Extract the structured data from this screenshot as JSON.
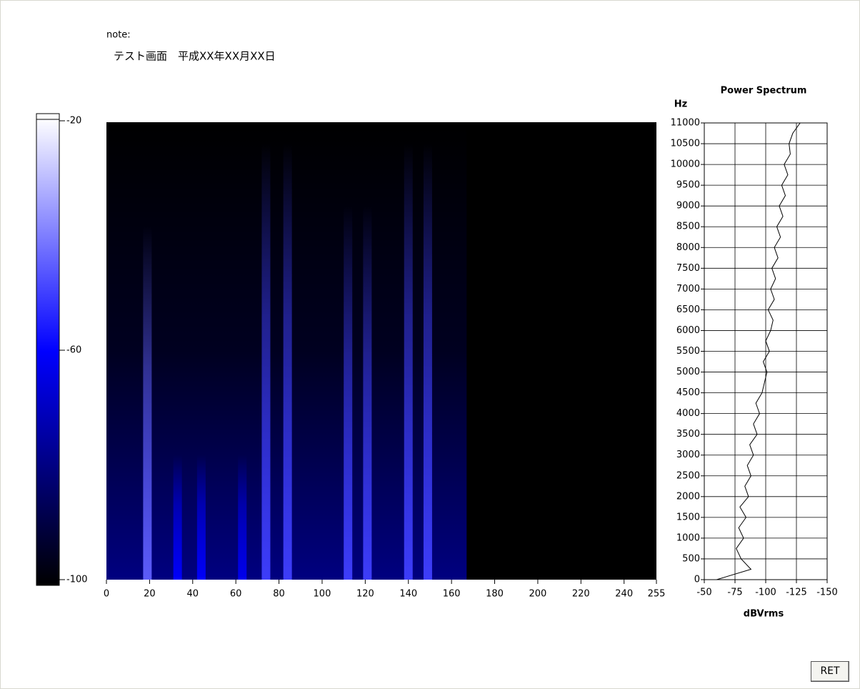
{
  "note_label": "note:",
  "note_text": "テスト画面　平成XX年XX月XX日",
  "button": "RET",
  "chart_data": [
    {
      "type": "colorbar",
      "ylim": [
        -100,
        -20
      ],
      "yticks": [
        -20,
        -60,
        -100
      ]
    },
    {
      "type": "spectrogram",
      "xlim": [
        0,
        255
      ],
      "xticks": [
        0,
        20,
        40,
        60,
        80,
        100,
        120,
        140,
        160,
        180,
        200,
        220,
        240,
        255
      ],
      "ylim": [
        0,
        11000
      ],
      "x_end": 167,
      "floor": -80,
      "x": [
        19,
        33,
        44,
        63,
        74,
        84,
        112,
        121,
        140,
        149
      ],
      "values": [
        -45,
        -60,
        -60,
        -62,
        -50,
        -50,
        -50,
        -50,
        -50,
        -50
      ],
      "tops": [
        8500,
        3000,
        3000,
        3000,
        10500,
        10500,
        9000,
        9000,
        10500,
        10500
      ]
    },
    {
      "type": "line",
      "title": "Power Spectrum",
      "ylabel": "Hz",
      "xlabel": "dBVrms",
      "color": "#000000",
      "grid": true,
      "xlim": [
        -50,
        -150
      ],
      "xticks": [
        -50,
        -75,
        -100,
        -125,
        -150
      ],
      "ylim": [
        0,
        11000
      ],
      "yticks": [
        0,
        500,
        1000,
        1500,
        2000,
        2500,
        3000,
        3500,
        4000,
        4500,
        5000,
        5500,
        6000,
        6500,
        7000,
        7500,
        8000,
        8500,
        9000,
        9500,
        10000,
        10500,
        11000
      ],
      "x": [
        0,
        250,
        500,
        750,
        1000,
        1250,
        1500,
        1750,
        2000,
        2250,
        2500,
        2750,
        3000,
        3250,
        3500,
        3750,
        4000,
        4250,
        4500,
        4750,
        5000,
        5250,
        5500,
        5750,
        6000,
        6250,
        6500,
        6750,
        7000,
        7250,
        7500,
        7750,
        8000,
        8250,
        8500,
        8750,
        9000,
        9250,
        9500,
        9750,
        10000,
        10250,
        10500,
        10750,
        11000
      ],
      "values": [
        -60,
        -88,
        -80,
        -76,
        -82,
        -78,
        -84,
        -79,
        -86,
        -83,
        -88,
        -85,
        -90,
        -87,
        -93,
        -90,
        -95,
        -92,
        -97,
        -99,
        -101,
        -98,
        -103,
        -100,
        -104,
        -106,
        -102,
        -107,
        -104,
        -108,
        -105,
        -110,
        -107,
        -112,
        -109,
        -114,
        -111,
        -116,
        -113,
        -118,
        -115,
        -120,
        -119,
        -122,
        -128
      ]
    }
  ]
}
